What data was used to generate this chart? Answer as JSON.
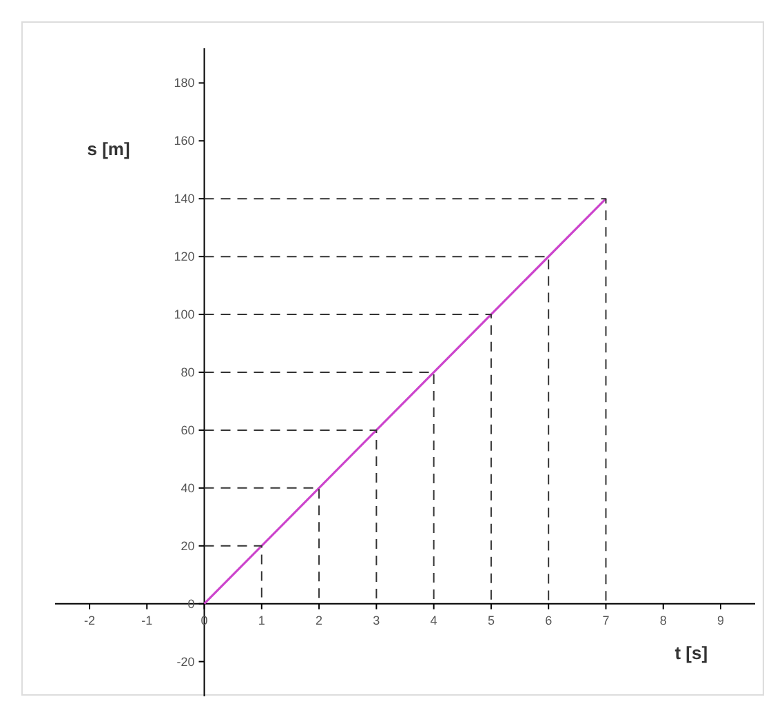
{
  "chart_data": {
    "type": "line",
    "xlabel": "t [s]",
    "ylabel": "s [m]",
    "xlim": [
      -2.6,
      9.6
    ],
    "ylim": [
      -32,
      192
    ],
    "xticks": [
      -2,
      -1,
      0,
      1,
      2,
      3,
      4,
      5,
      6,
      7,
      8,
      9
    ],
    "yticks": [
      -20,
      0,
      20,
      40,
      60,
      80,
      100,
      120,
      140,
      160,
      180
    ],
    "grid": false,
    "marker": "none",
    "series": [
      {
        "color": "#cc44cc",
        "x": [
          0,
          7
        ],
        "values": [
          0,
          140
        ],
        "line_style": "solid"
      },
      {
        "color": "#333333",
        "x": [
          0,
          1,
          1
        ],
        "values": [
          20,
          20,
          0
        ],
        "line_style": "dashed"
      },
      {
        "color": "#333333",
        "x": [
          0,
          2,
          2
        ],
        "values": [
          40,
          40,
          0
        ],
        "line_style": "dashed"
      },
      {
        "color": "#333333",
        "x": [
          0,
          3,
          3
        ],
        "values": [
          60,
          60,
          0
        ],
        "line_style": "dashed"
      },
      {
        "color": "#333333",
        "x": [
          0,
          4,
          4
        ],
        "values": [
          80,
          80,
          0
        ],
        "line_style": "dashed"
      },
      {
        "color": "#333333",
        "x": [
          0,
          5,
          5
        ],
        "values": [
          100,
          100,
          0
        ],
        "line_style": "dashed"
      },
      {
        "color": "#333333",
        "x": [
          0,
          6,
          6
        ],
        "values": [
          120,
          120,
          0
        ],
        "line_style": "dashed"
      },
      {
        "color": "#333333",
        "x": [
          0,
          7,
          7
        ],
        "values": [
          140,
          140,
          0
        ],
        "line_style": "dashed"
      }
    ]
  }
}
